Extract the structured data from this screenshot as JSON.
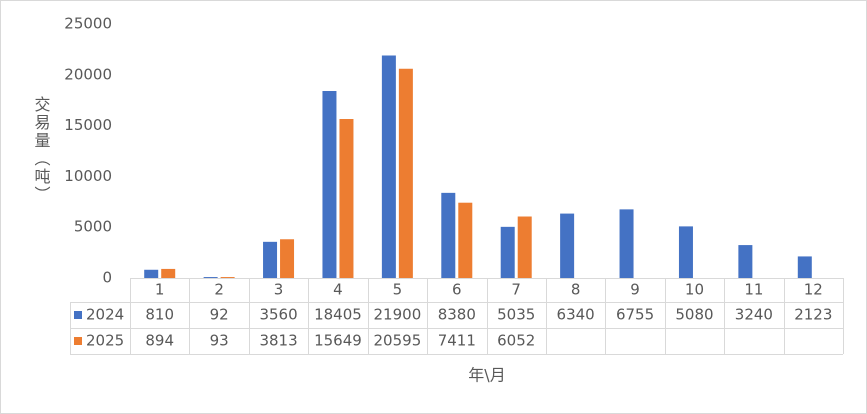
{
  "chart_data": {
    "type": "bar",
    "x_label": "年\\月",
    "y_label": "交易量（吨）",
    "categories": [
      "1",
      "2",
      "3",
      "4",
      "5",
      "6",
      "7",
      "8",
      "9",
      "10",
      "11",
      "12"
    ],
    "series": [
      {
        "name": "2024",
        "color": "#4472c4",
        "values": [
          810,
          92,
          3560,
          18405,
          21900,
          8380,
          5035,
          6340,
          6755,
          5080,
          3240,
          2123
        ]
      },
      {
        "name": "2025",
        "color": "#ed7d31",
        "values": [
          894,
          93,
          3813,
          15649,
          20595,
          7411,
          6052,
          null,
          null,
          null,
          null,
          null
        ]
      }
    ],
    "ylim": [
      0,
      25000
    ],
    "yticks": [
      0,
      5000,
      10000,
      15000,
      20000,
      25000
    ],
    "grid": false
  }
}
